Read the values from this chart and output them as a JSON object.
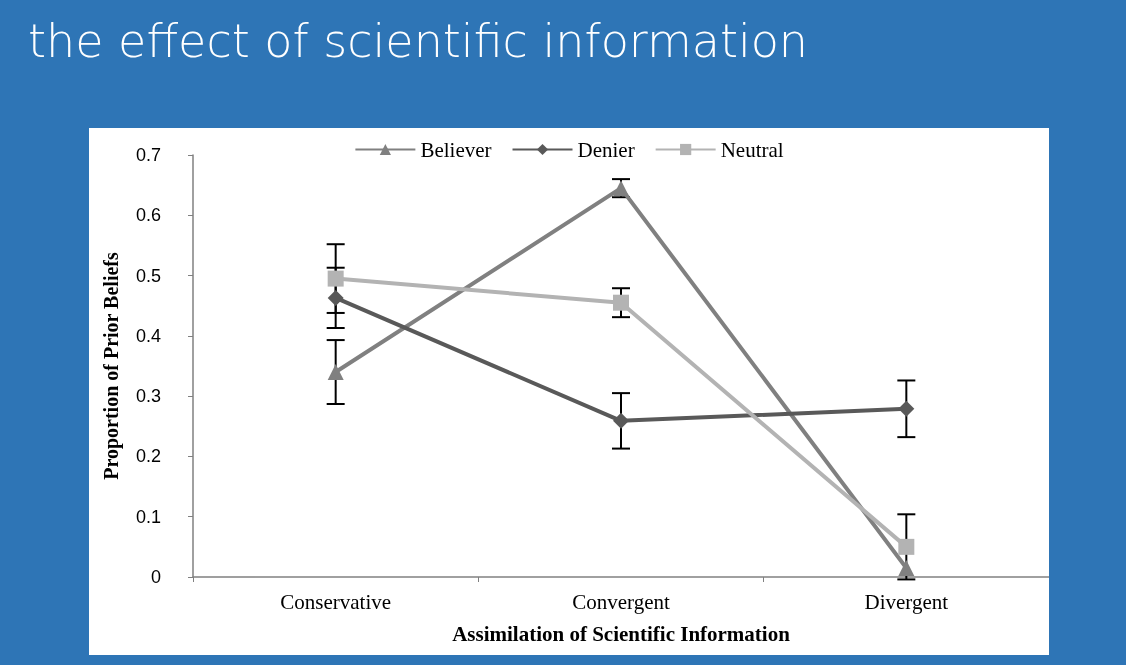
{
  "chart_data": {
    "type": "line",
    "title": "the effect of scientific information",
    "xlabel": "Assimilation of Scientific Information",
    "ylabel": "Proportion of Prior Beliefs",
    "categories": [
      "Conservative",
      "Convergent",
      "Divergent"
    ],
    "series": [
      {
        "name": "Believer",
        "color": "#808080",
        "marker": "triangle",
        "values": [
          0.34,
          0.645,
          0.015
        ],
        "errors": [
          0.053,
          0.015,
          null
        ]
      },
      {
        "name": "Denier",
        "color": "#595959",
        "marker": "diamond",
        "values": [
          0.463,
          0.259,
          0.279
        ],
        "errors": [
          0.05,
          0.046,
          0.047
        ]
      },
      {
        "name": "Neutral",
        "color": "#b3b3b3",
        "marker": "square",
        "values": [
          0.495,
          0.455,
          0.05
        ],
        "errors": [
          0.057,
          0.024,
          0.054
        ]
      }
    ],
    "ylim": [
      0,
      0.7
    ],
    "yticks": [
      0,
      0.1,
      0.2,
      0.3,
      0.4,
      0.5,
      0.6,
      0.7
    ],
    "grid": false,
    "legend": "top"
  }
}
